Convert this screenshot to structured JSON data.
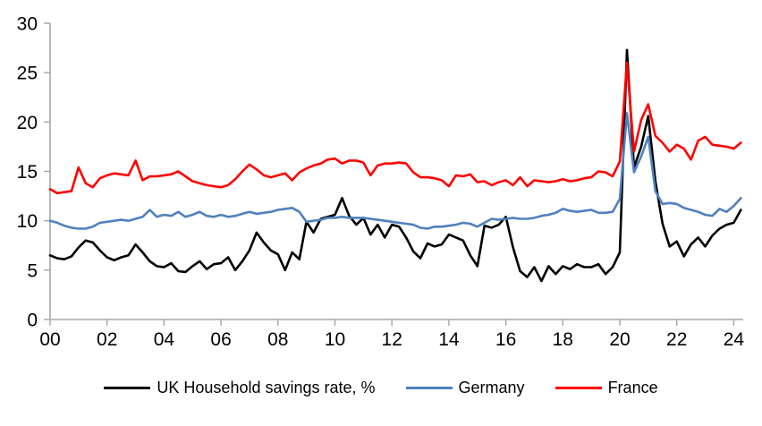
{
  "chart_data": {
    "type": "line",
    "title": "",
    "x_axis": {
      "tick_labels": [
        "00",
        "02",
        "04",
        "06",
        "08",
        "10",
        "12",
        "14",
        "16",
        "18",
        "20",
        "22",
        "24"
      ],
      "frequency": "quarterly",
      "start_year": 2000,
      "end_point": "2024Q2"
    },
    "y_axis": {
      "ticks": [
        0,
        5,
        10,
        15,
        20,
        25,
        30
      ],
      "range": [
        0,
        30
      ]
    },
    "grid": false,
    "legend_position": "bottom",
    "axis_color": "#a6a6a6",
    "series": [
      {
        "name": "UK Household savings rate, %",
        "color": "#000000",
        "values": [
          6.5,
          6.2,
          6.1,
          6.4,
          7.3,
          8.0,
          7.8,
          7.0,
          6.3,
          6.0,
          6.3,
          6.5,
          7.6,
          6.8,
          5.9,
          5.4,
          5.3,
          5.7,
          4.9,
          4.8,
          5.4,
          5.9,
          5.1,
          5.6,
          5.7,
          6.3,
          5.0,
          5.9,
          7.0,
          8.8,
          7.8,
          7.0,
          6.6,
          5.0,
          6.8,
          6.1,
          9.9,
          8.8,
          10.2,
          10.4,
          10.6,
          12.3,
          10.5,
          9.6,
          10.3,
          8.6,
          9.6,
          8.3,
          9.6,
          9.4,
          8.3,
          6.9,
          6.2,
          7.7,
          7.4,
          7.6,
          8.6,
          8.3,
          8.0,
          6.5,
          5.4,
          9.5,
          9.3,
          9.6,
          10.4,
          7.3,
          4.9,
          4.3,
          5.3,
          3.9,
          5.4,
          4.6,
          5.4,
          5.1,
          5.6,
          5.3,
          5.3,
          5.6,
          4.6,
          5.3,
          6.8,
          27.3,
          15.4,
          17.5,
          20.6,
          14.0,
          9.7,
          7.4,
          7.9,
          6.4,
          7.6,
          8.3,
          7.4,
          8.5,
          9.2,
          9.6,
          9.8,
          11.1
        ]
      },
      {
        "name": "Germany",
        "color": "#4f81bd",
        "values": [
          10.0,
          9.8,
          9.5,
          9.3,
          9.2,
          9.2,
          9.4,
          9.8,
          9.9,
          10.0,
          10.1,
          10.0,
          10.2,
          10.4,
          11.1,
          10.4,
          10.6,
          10.5,
          10.9,
          10.4,
          10.6,
          10.9,
          10.5,
          10.4,
          10.6,
          10.4,
          10.5,
          10.7,
          10.9,
          10.7,
          10.8,
          10.9,
          11.1,
          11.2,
          11.3,
          10.9,
          9.9,
          10.0,
          10.1,
          10.3,
          10.3,
          10.4,
          10.3,
          10.3,
          10.3,
          10.2,
          10.1,
          10.0,
          9.9,
          9.8,
          9.7,
          9.6,
          9.3,
          9.2,
          9.4,
          9.4,
          9.5,
          9.6,
          9.8,
          9.7,
          9.4,
          9.8,
          10.2,
          10.1,
          10.2,
          10.3,
          10.2,
          10.2,
          10.3,
          10.5,
          10.6,
          10.8,
          11.2,
          11.0,
          10.9,
          11.0,
          11.1,
          10.8,
          10.8,
          10.9,
          12.2,
          20.9,
          14.9,
          16.5,
          18.5,
          13.0,
          11.7,
          11.8,
          11.7,
          11.3,
          11.1,
          10.9,
          10.6,
          10.5,
          11.2,
          10.9,
          11.5,
          12.3
        ]
      },
      {
        "name": "France",
        "color": "#ff0000",
        "values": [
          13.2,
          12.8,
          12.9,
          13.0,
          15.4,
          13.8,
          13.4,
          14.3,
          14.6,
          14.8,
          14.7,
          14.6,
          16.1,
          14.1,
          14.5,
          14.5,
          14.6,
          14.7,
          15.0,
          14.5,
          14.0,
          13.8,
          13.6,
          13.5,
          13.4,
          13.6,
          14.2,
          15.0,
          15.7,
          15.2,
          14.6,
          14.4,
          14.6,
          14.8,
          14.1,
          14.9,
          15.3,
          15.6,
          15.8,
          16.2,
          16.3,
          15.8,
          16.1,
          16.1,
          15.9,
          14.6,
          15.6,
          15.8,
          15.8,
          15.9,
          15.8,
          14.9,
          14.4,
          14.4,
          14.3,
          14.1,
          13.5,
          14.6,
          14.5,
          14.7,
          13.9,
          14.0,
          13.6,
          13.9,
          14.1,
          13.6,
          14.4,
          13.5,
          14.1,
          14.0,
          13.9,
          14.0,
          14.2,
          14.0,
          14.1,
          14.3,
          14.4,
          15.0,
          14.9,
          14.5,
          16.0,
          26.0,
          17.0,
          20.2,
          21.8,
          18.6,
          17.9,
          17.0,
          17.7,
          17.3,
          16.2,
          18.1,
          18.5,
          17.7,
          17.6,
          17.5,
          17.3,
          17.9
        ]
      }
    ]
  }
}
